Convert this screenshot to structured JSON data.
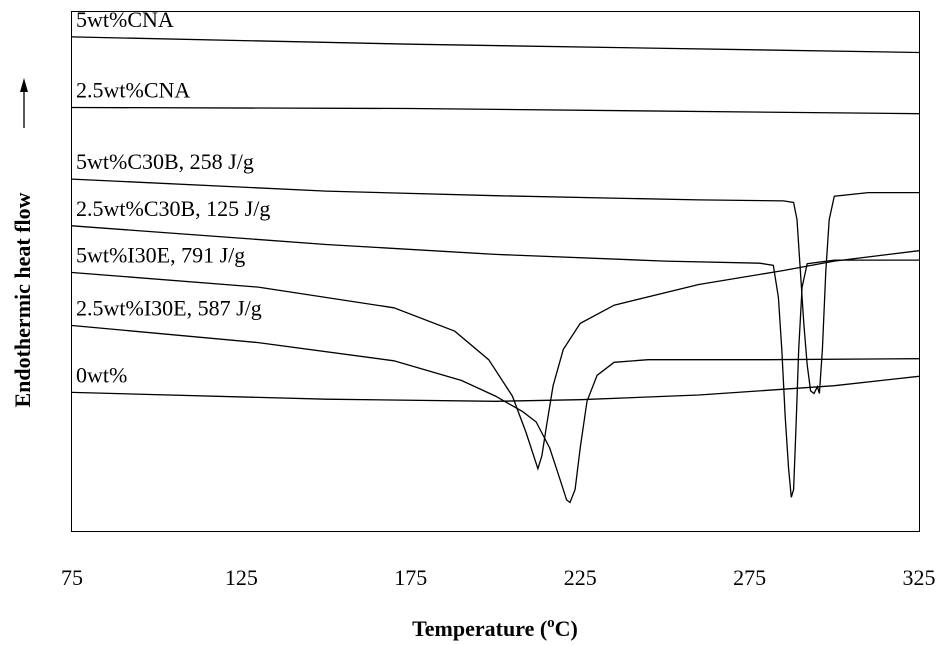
{
  "chart_data": {
    "type": "line",
    "xlabel": "Temperature (",
    "xlabel_sup": "o",
    "xlabel_end": "C)",
    "ylabel": "Endothermic heat flow",
    "xlim": [
      75,
      325
    ],
    "ylim": [
      0,
      100
    ],
    "x_ticks": [
      75,
      125,
      175,
      225,
      275,
      325
    ],
    "x_tick_labels": [
      "75",
      "125",
      "175",
      "225",
      "275",
      "325"
    ],
    "y_axis_arrow": true,
    "y_tick_labels_shown": false,
    "grid": false,
    "series": [
      {
        "name": "5wt%CNA",
        "points": [
          [
            75,
            95.2
          ],
          [
            175,
            93.8
          ],
          [
            325,
            92.2
          ]
        ]
      },
      {
        "name": "2.5wt%CNA",
        "points": [
          [
            75,
            81.6
          ],
          [
            175,
            81.4
          ],
          [
            325,
            80.4
          ]
        ]
      },
      {
        "name": "5wt%C30B, 258 J/g",
        "points": [
          [
            75,
            67.8
          ],
          [
            150,
            65.5
          ],
          [
            200,
            64.6
          ],
          [
            260,
            63.8
          ],
          [
            285,
            63.6
          ],
          [
            288,
            63.3
          ],
          [
            289,
            60
          ],
          [
            290,
            50
          ],
          [
            291,
            40
          ],
          [
            292,
            32
          ],
          [
            293,
            27
          ],
          [
            294,
            26.5
          ],
          [
            295,
            27.8
          ],
          [
            295.6,
            26.5
          ],
          [
            296.5,
            35
          ],
          [
            297.5,
            50
          ],
          [
            298.5,
            60
          ],
          [
            300,
            64.5
          ],
          [
            310,
            65.2
          ],
          [
            325,
            65.2
          ]
        ]
      },
      {
        "name": "2.5wt%C30B, 125 J/g",
        "points": [
          [
            75,
            58.8
          ],
          [
            150,
            55.2
          ],
          [
            200,
            53.3
          ],
          [
            250,
            52
          ],
          [
            278,
            51.6
          ],
          [
            282,
            51.2
          ],
          [
            283.5,
            45
          ],
          [
            284.5,
            35
          ],
          [
            285.5,
            22
          ],
          [
            286.5,
            12
          ],
          [
            287.3,
            6.5
          ],
          [
            288,
            8
          ],
          [
            288.7,
            20
          ],
          [
            289.5,
            35
          ],
          [
            290.5,
            47
          ],
          [
            292,
            51.5
          ],
          [
            300,
            52.2
          ],
          [
            325,
            52.2
          ]
        ]
      },
      {
        "name": "5wt%I30E, 791 J/g",
        "points": [
          [
            75,
            49.8
          ],
          [
            130,
            47
          ],
          [
            170,
            43
          ],
          [
            188,
            38.5
          ],
          [
            198,
            33
          ],
          [
            205,
            26
          ],
          [
            209,
            19
          ],
          [
            211.5,
            14
          ],
          [
            212.5,
            12
          ],
          [
            213.7,
            14.5
          ],
          [
            215,
            20
          ],
          [
            217,
            28
          ],
          [
            220,
            35
          ],
          [
            225,
            40
          ],
          [
            235,
            43.5
          ],
          [
            260,
            47.5
          ],
          [
            285,
            50.2
          ],
          [
            300,
            52
          ],
          [
            325,
            54
          ]
        ]
      },
      {
        "name": "2.5wt%I30E, 587 J/g",
        "points": [
          [
            75,
            39.6
          ],
          [
            130,
            36.3
          ],
          [
            170,
            32.8
          ],
          [
            190,
            29
          ],
          [
            200,
            26
          ],
          [
            208,
            23
          ],
          [
            212,
            21
          ],
          [
            216,
            16
          ],
          [
            219,
            10
          ],
          [
            221,
            6
          ],
          [
            222,
            5.5
          ],
          [
            223.5,
            8
          ],
          [
            225,
            16
          ],
          [
            227,
            25
          ],
          [
            230,
            30
          ],
          [
            235,
            32.5
          ],
          [
            245,
            33
          ],
          [
            280,
            33
          ],
          [
            325,
            33.2
          ]
        ]
      },
      {
        "name": "0wt%",
        "points": [
          [
            75,
            26.7
          ],
          [
            150,
            25.4
          ],
          [
            200,
            25
          ],
          [
            225,
            25.3
          ],
          [
            260,
            26.2
          ],
          [
            300,
            28
          ],
          [
            325,
            29.8
          ]
        ]
      }
    ]
  }
}
